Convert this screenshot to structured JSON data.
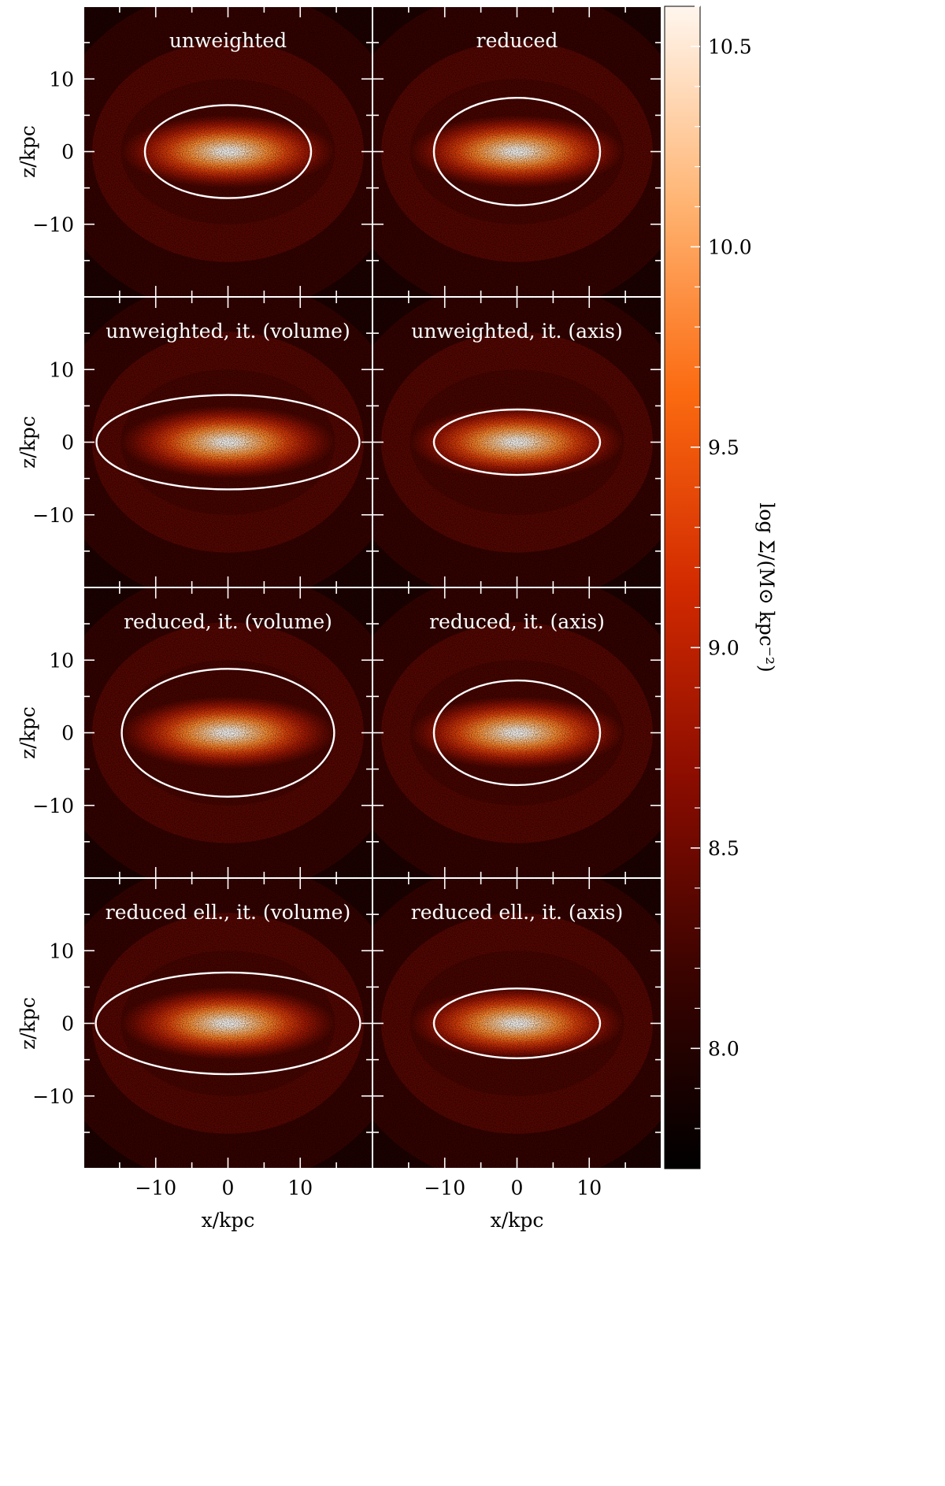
{
  "figure": {
    "shared_ylabel": "z/kpc",
    "shared_xlabel": "x/kpc",
    "colorbar": {
      "label": "log Σ/(M⊙ kpc⁻²)",
      "range": [
        7.7,
        10.6
      ],
      "ticks": [
        8.0,
        8.5,
        9.0,
        9.5,
        10.0,
        10.5
      ],
      "tick_labels": [
        "8.0",
        "8.5",
        "9.0",
        "9.5",
        "10.0",
        "10.5"
      ],
      "colors": [
        "#000000",
        "#3a0300",
        "#8a0c00",
        "#d22a00",
        "#fb6a10",
        "#ffb574",
        "#fff6ee"
      ]
    },
    "ellipse_color": "#ffffff"
  },
  "chart_data": [
    {
      "type": "heatmap",
      "title": "unweighted",
      "xlabel": "",
      "ylabel": "z/kpc",
      "xlim": [
        -20,
        20
      ],
      "ylim": [
        -20,
        20
      ],
      "xticks": [
        -10,
        0,
        10
      ],
      "xtick_labels": [
        "",
        "",
        ""
      ],
      "yticks": [
        10,
        0,
        -10
      ],
      "ytick_labels": [
        "10",
        "0",
        "−10"
      ],
      "ellipse": {
        "center": [
          0,
          0
        ],
        "semi_x": 11.5,
        "semi_z": 6.4
      }
    },
    {
      "type": "heatmap",
      "title": "reduced",
      "xlabel": "",
      "ylabel": "",
      "xlim": [
        -20,
        20
      ],
      "ylim": [
        -20,
        20
      ],
      "xticks": [
        -10,
        0,
        10
      ],
      "xtick_labels": [
        "",
        "",
        ""
      ],
      "yticks": [
        10,
        0,
        -10
      ],
      "ytick_labels": [
        "",
        "",
        ""
      ],
      "ellipse": {
        "center": [
          0,
          0
        ],
        "semi_x": 11.5,
        "semi_z": 7.4
      }
    },
    {
      "type": "heatmap",
      "title": "unweighted,  it. (volume)",
      "xlabel": "",
      "ylabel": "z/kpc",
      "xlim": [
        -20,
        20
      ],
      "ylim": [
        -20,
        20
      ],
      "xticks": [
        -10,
        0,
        10
      ],
      "xtick_labels": [
        "",
        "",
        ""
      ],
      "yticks": [
        10,
        0,
        -10
      ],
      "ytick_labels": [
        "10",
        "0",
        "−10"
      ],
      "ellipse": {
        "center": [
          0,
          0
        ],
        "semi_x": 18.2,
        "semi_z": 6.5
      }
    },
    {
      "type": "heatmap",
      "title": "unweighted,  it. (axis)",
      "xlabel": "",
      "ylabel": "",
      "xlim": [
        -20,
        20
      ],
      "ylim": [
        -20,
        20
      ],
      "xticks": [
        -10,
        0,
        10
      ],
      "xtick_labels": [
        "",
        "",
        ""
      ],
      "yticks": [
        10,
        0,
        -10
      ],
      "ytick_labels": [
        "",
        "",
        ""
      ],
      "ellipse": {
        "center": [
          0,
          0
        ],
        "semi_x": 11.5,
        "semi_z": 4.5
      }
    },
    {
      "type": "heatmap",
      "title": "reduced,  it. (volume)",
      "xlabel": "",
      "ylabel": "z/kpc",
      "xlim": [
        -20,
        20
      ],
      "ylim": [
        -20,
        20
      ],
      "xticks": [
        -10,
        0,
        10
      ],
      "xtick_labels": [
        "",
        "",
        ""
      ],
      "yticks": [
        10,
        0,
        -10
      ],
      "ytick_labels": [
        "10",
        "0",
        "−10"
      ],
      "ellipse": {
        "center": [
          0,
          0
        ],
        "semi_x": 14.7,
        "semi_z": 8.8
      }
    },
    {
      "type": "heatmap",
      "title": "reduced,  it. (axis)",
      "xlabel": "",
      "ylabel": "",
      "xlim": [
        -20,
        20
      ],
      "ylim": [
        -20,
        20
      ],
      "xticks": [
        -10,
        0,
        10
      ],
      "xtick_labels": [
        "",
        "",
        ""
      ],
      "yticks": [
        10,
        0,
        -10
      ],
      "ytick_labels": [
        "",
        "",
        ""
      ],
      "ellipse": {
        "center": [
          0,
          0
        ],
        "semi_x": 11.5,
        "semi_z": 7.2
      }
    },
    {
      "type": "heatmap",
      "title": "reduced ell.,  it. (volume)",
      "xlabel": "x/kpc",
      "ylabel": "z/kpc",
      "xlim": [
        -20,
        20
      ],
      "ylim": [
        -20,
        20
      ],
      "xticks": [
        -10,
        0,
        10
      ],
      "xtick_labels": [
        "−10",
        "0",
        "10"
      ],
      "yticks": [
        10,
        0,
        -10
      ],
      "ytick_labels": [
        "10",
        "0",
        "−10"
      ],
      "ellipse": {
        "center": [
          0,
          0
        ],
        "semi_x": 18.3,
        "semi_z": 7.0
      }
    },
    {
      "type": "heatmap",
      "title": "reduced ell.,  it. (axis)",
      "xlabel": "x/kpc",
      "ylabel": "",
      "xlim": [
        -20,
        20
      ],
      "ylim": [
        -20,
        20
      ],
      "xticks": [
        -10,
        0,
        10
      ],
      "xtick_labels": [
        "−10",
        "0",
        "10"
      ],
      "yticks": [
        10,
        0,
        -10
      ],
      "ytick_labels": [
        "",
        "",
        ""
      ],
      "ellipse": {
        "center": [
          0,
          0
        ],
        "semi_x": 11.5,
        "semi_z": 4.8
      }
    }
  ]
}
